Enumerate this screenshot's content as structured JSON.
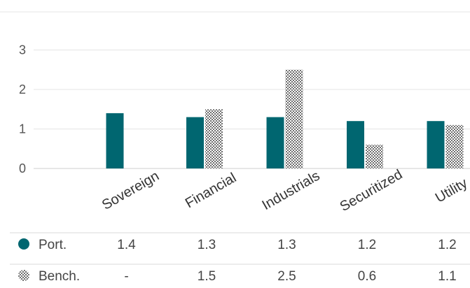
{
  "chart_data": {
    "type": "bar",
    "categories": [
      "Sovereign",
      "Financial",
      "Industrials",
      "Securitized",
      "Utility"
    ],
    "series": [
      {
        "name": "Port.",
        "values": [
          1.4,
          1.3,
          1.3,
          1.2,
          1.2
        ],
        "color": "#006670",
        "pattern": "solid"
      },
      {
        "name": "Bench.",
        "values": [
          null,
          1.5,
          2.5,
          0.6,
          1.1
        ],
        "color": "#707070",
        "pattern": "checkered"
      }
    ],
    "yticks": [
      0,
      1,
      2,
      3
    ],
    "ylim": [
      0,
      3
    ],
    "grid": true,
    "legend": "table-below",
    "title": "",
    "xlabel": "",
    "ylabel": ""
  },
  "table": {
    "rows": [
      {
        "label": "Port.",
        "cells": [
          "1.4",
          "1.3",
          "1.3",
          "1.2",
          "1.2"
        ]
      },
      {
        "label": "Bench.",
        "cells": [
          "-",
          "1.5",
          "2.5",
          "0.6",
          "1.1"
        ]
      }
    ]
  },
  "colors": {
    "port": "#006670",
    "bench": "#707070",
    "grid": "#e4e4e4"
  }
}
